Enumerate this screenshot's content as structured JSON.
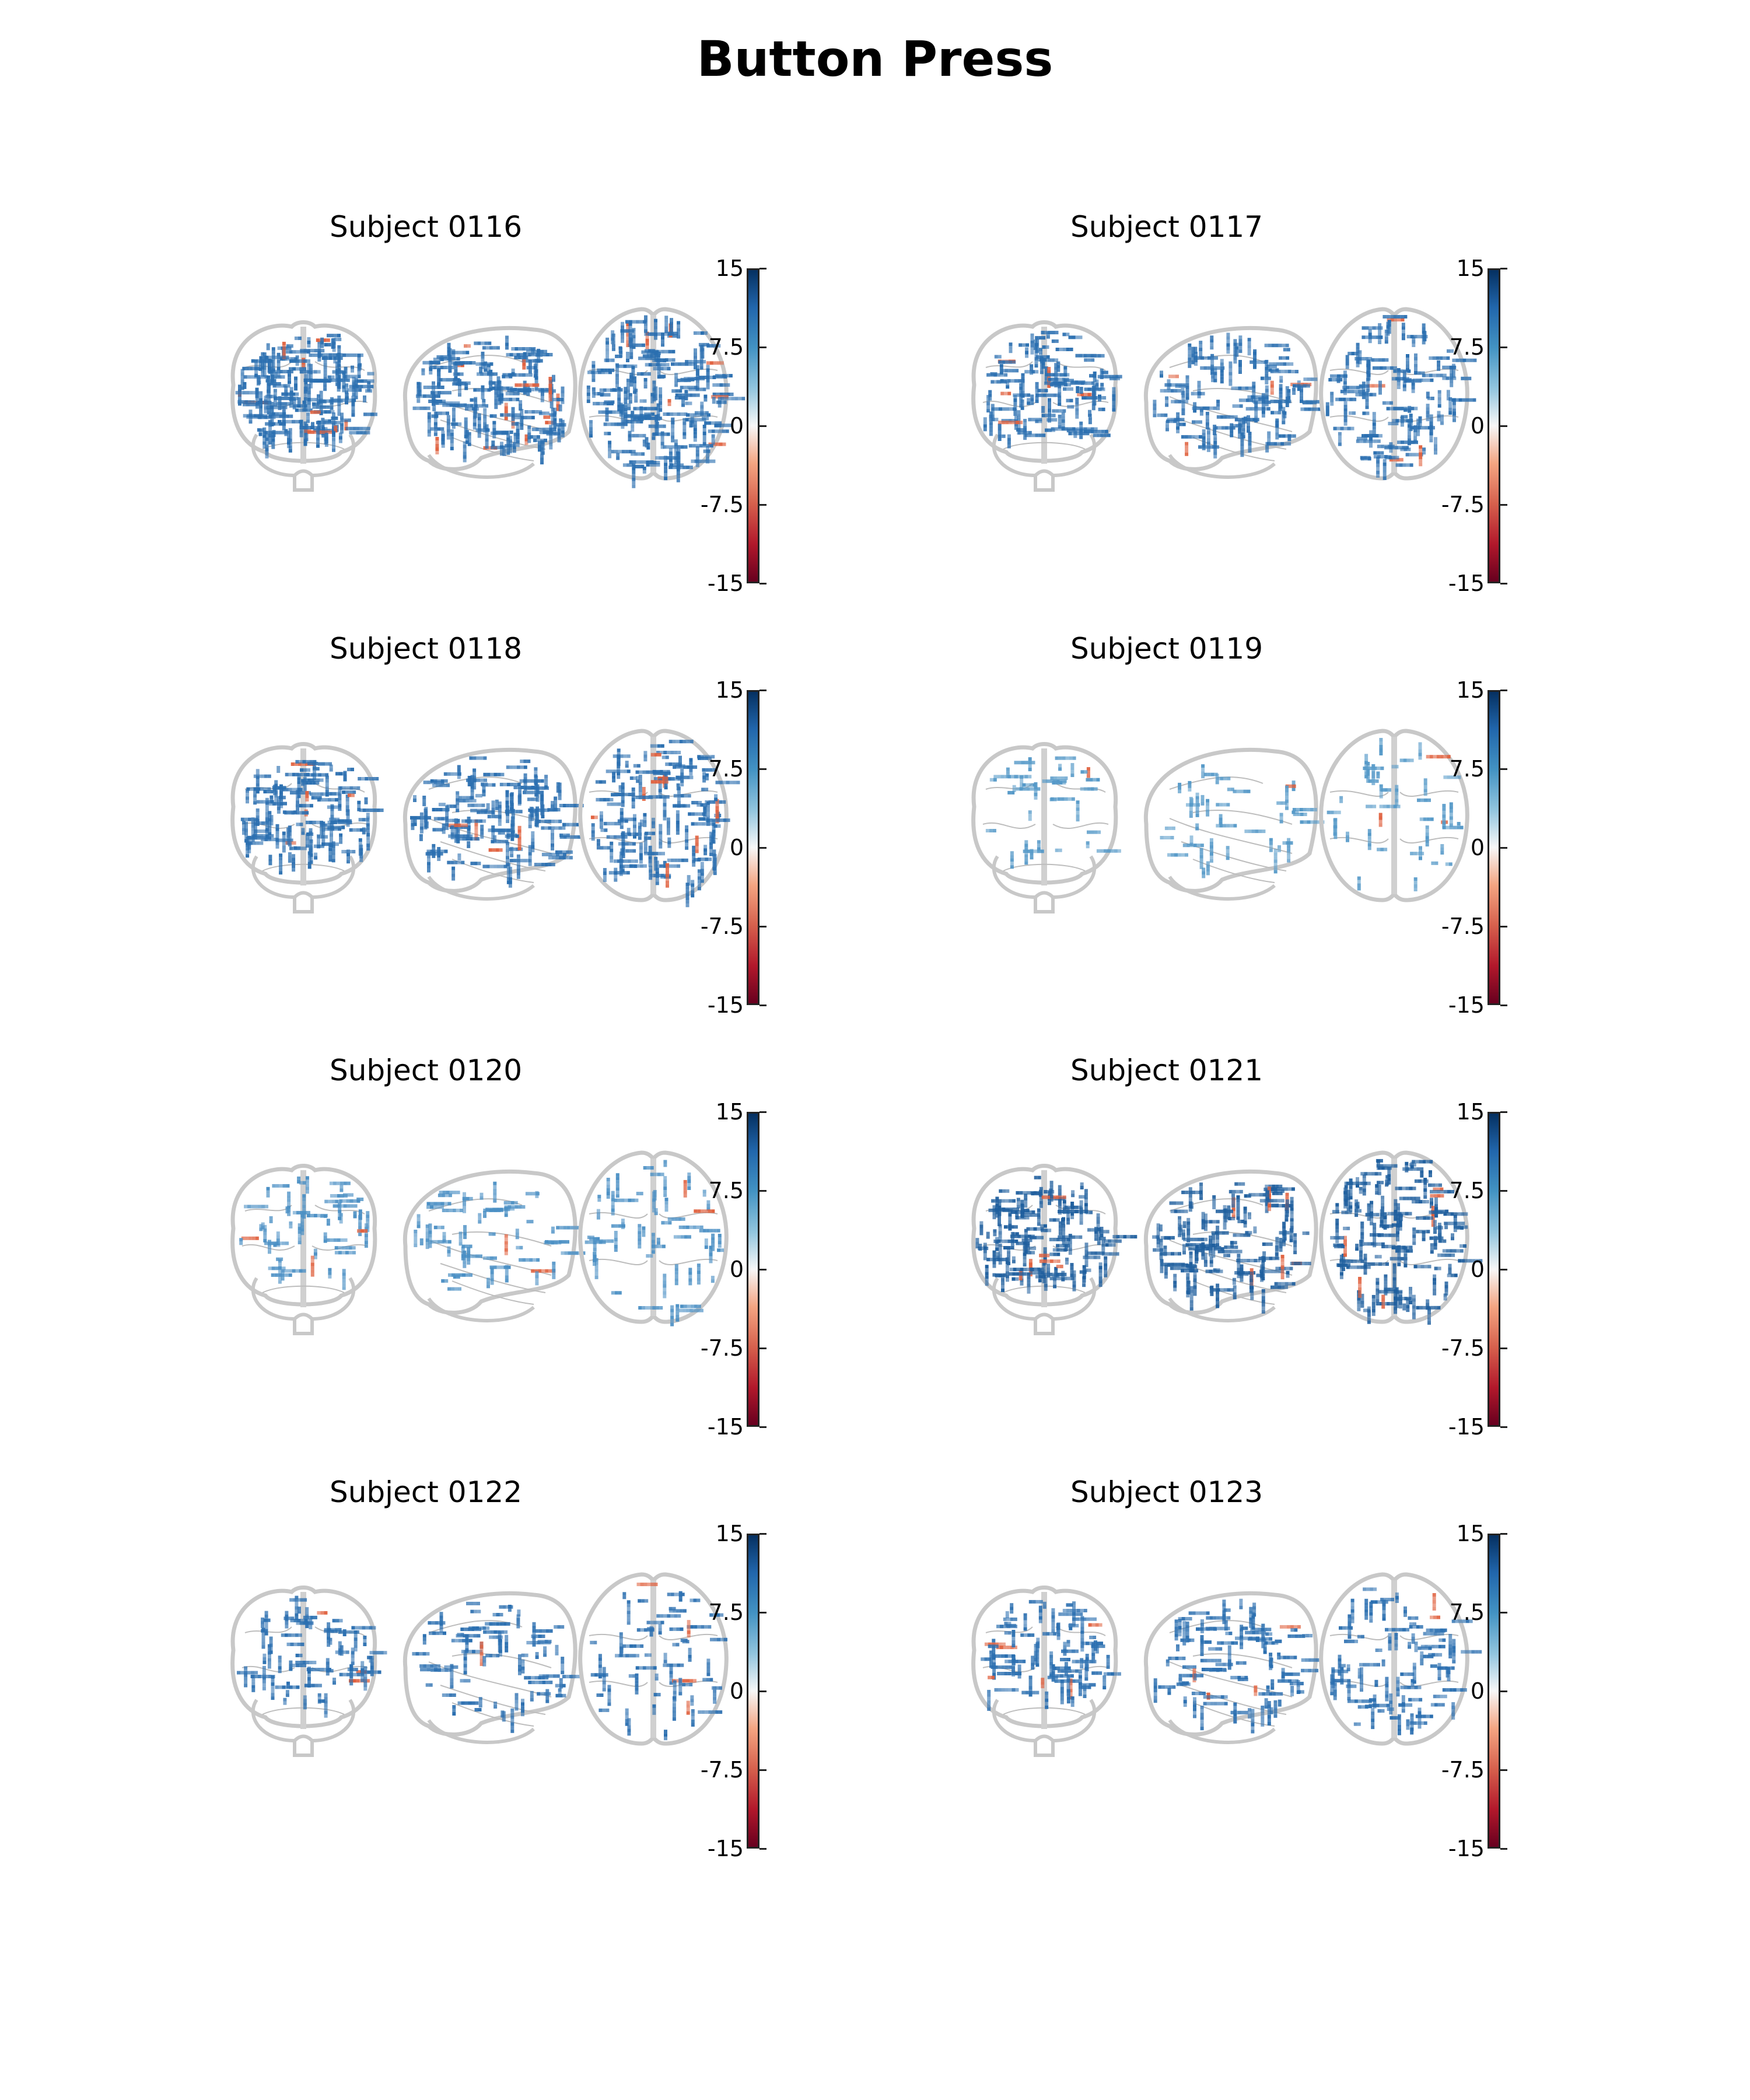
{
  "title": "Button Press",
  "colorbar": {
    "ticks": [
      "15",
      "7.5",
      "0",
      "-7.5",
      "-15"
    ],
    "min": -15,
    "max": 15,
    "colormap": [
      "#053061",
      "#2166ac",
      "#4393c3",
      "#92c5de",
      "#f7f7f7",
      "#f4a582",
      "#d6604d",
      "#b2182b",
      "#67001f"
    ]
  },
  "panels": [
    {
      "label": "Subject 0116",
      "density": 0.95,
      "positive_color": "#2b6fb0",
      "negative_color": "#e0603d"
    },
    {
      "label": "Subject 0117",
      "density": 0.6,
      "positive_color": "#2b6fb0",
      "negative_color": "#e0603d"
    },
    {
      "label": "Subject 0118",
      "density": 0.7,
      "positive_color": "#2b6fb0",
      "negative_color": "#e0603d"
    },
    {
      "label": "Subject 0119",
      "density": 0.2,
      "positive_color": "#5599c8",
      "negative_color": "#e0603d"
    },
    {
      "label": "Subject 0120",
      "density": 0.3,
      "positive_color": "#4a8fc4",
      "negative_color": "#e0603d"
    },
    {
      "label": "Subject 0121",
      "density": 0.75,
      "positive_color": "#1f5f9e",
      "negative_color": "#e0603d"
    },
    {
      "label": "Subject 0122",
      "density": 0.35,
      "positive_color": "#2b6fb0",
      "negative_color": "#e0603d"
    },
    {
      "label": "Subject 0123",
      "density": 0.45,
      "positive_color": "#2b6fb0",
      "negative_color": "#e0603d"
    }
  ]
}
